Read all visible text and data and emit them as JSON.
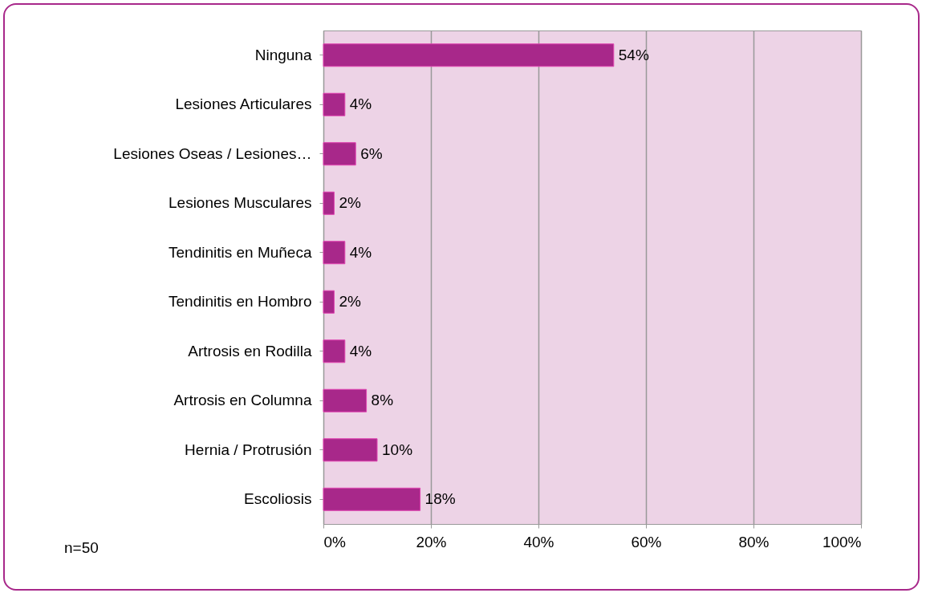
{
  "chart_data": {
    "type": "bar",
    "orientation": "horizontal",
    "categories": [
      "Ninguna",
      "Lesiones Articulares",
      "Lesiones Oseas / Lesiones…",
      "Lesiones Musculares",
      "Tendinitis en Muñeca",
      "Tendinitis en Hombro",
      "Artrosis en Rodilla",
      "Artrosis en Columna",
      "Hernia / Protrusión",
      "Escoliosis"
    ],
    "values": [
      54,
      4,
      6,
      2,
      4,
      2,
      4,
      8,
      10,
      18
    ],
    "value_labels": [
      "54%",
      "4%",
      "6%",
      "2%",
      "4%",
      "2%",
      "4%",
      "8%",
      "10%",
      "18%"
    ],
    "color": "#a8288a",
    "xlim": [
      0,
      100
    ],
    "xticks": [
      {
        "value": 0,
        "label": "0%"
      },
      {
        "value": 20,
        "label": "20%"
      },
      {
        "value": 40,
        "label": "40%"
      },
      {
        "value": 60,
        "label": "60%"
      },
      {
        "value": 80,
        "label": "80%"
      },
      {
        "value": 100,
        "label": "100%"
      }
    ],
    "grid": "x",
    "annotations": [
      "n=50"
    ]
  }
}
